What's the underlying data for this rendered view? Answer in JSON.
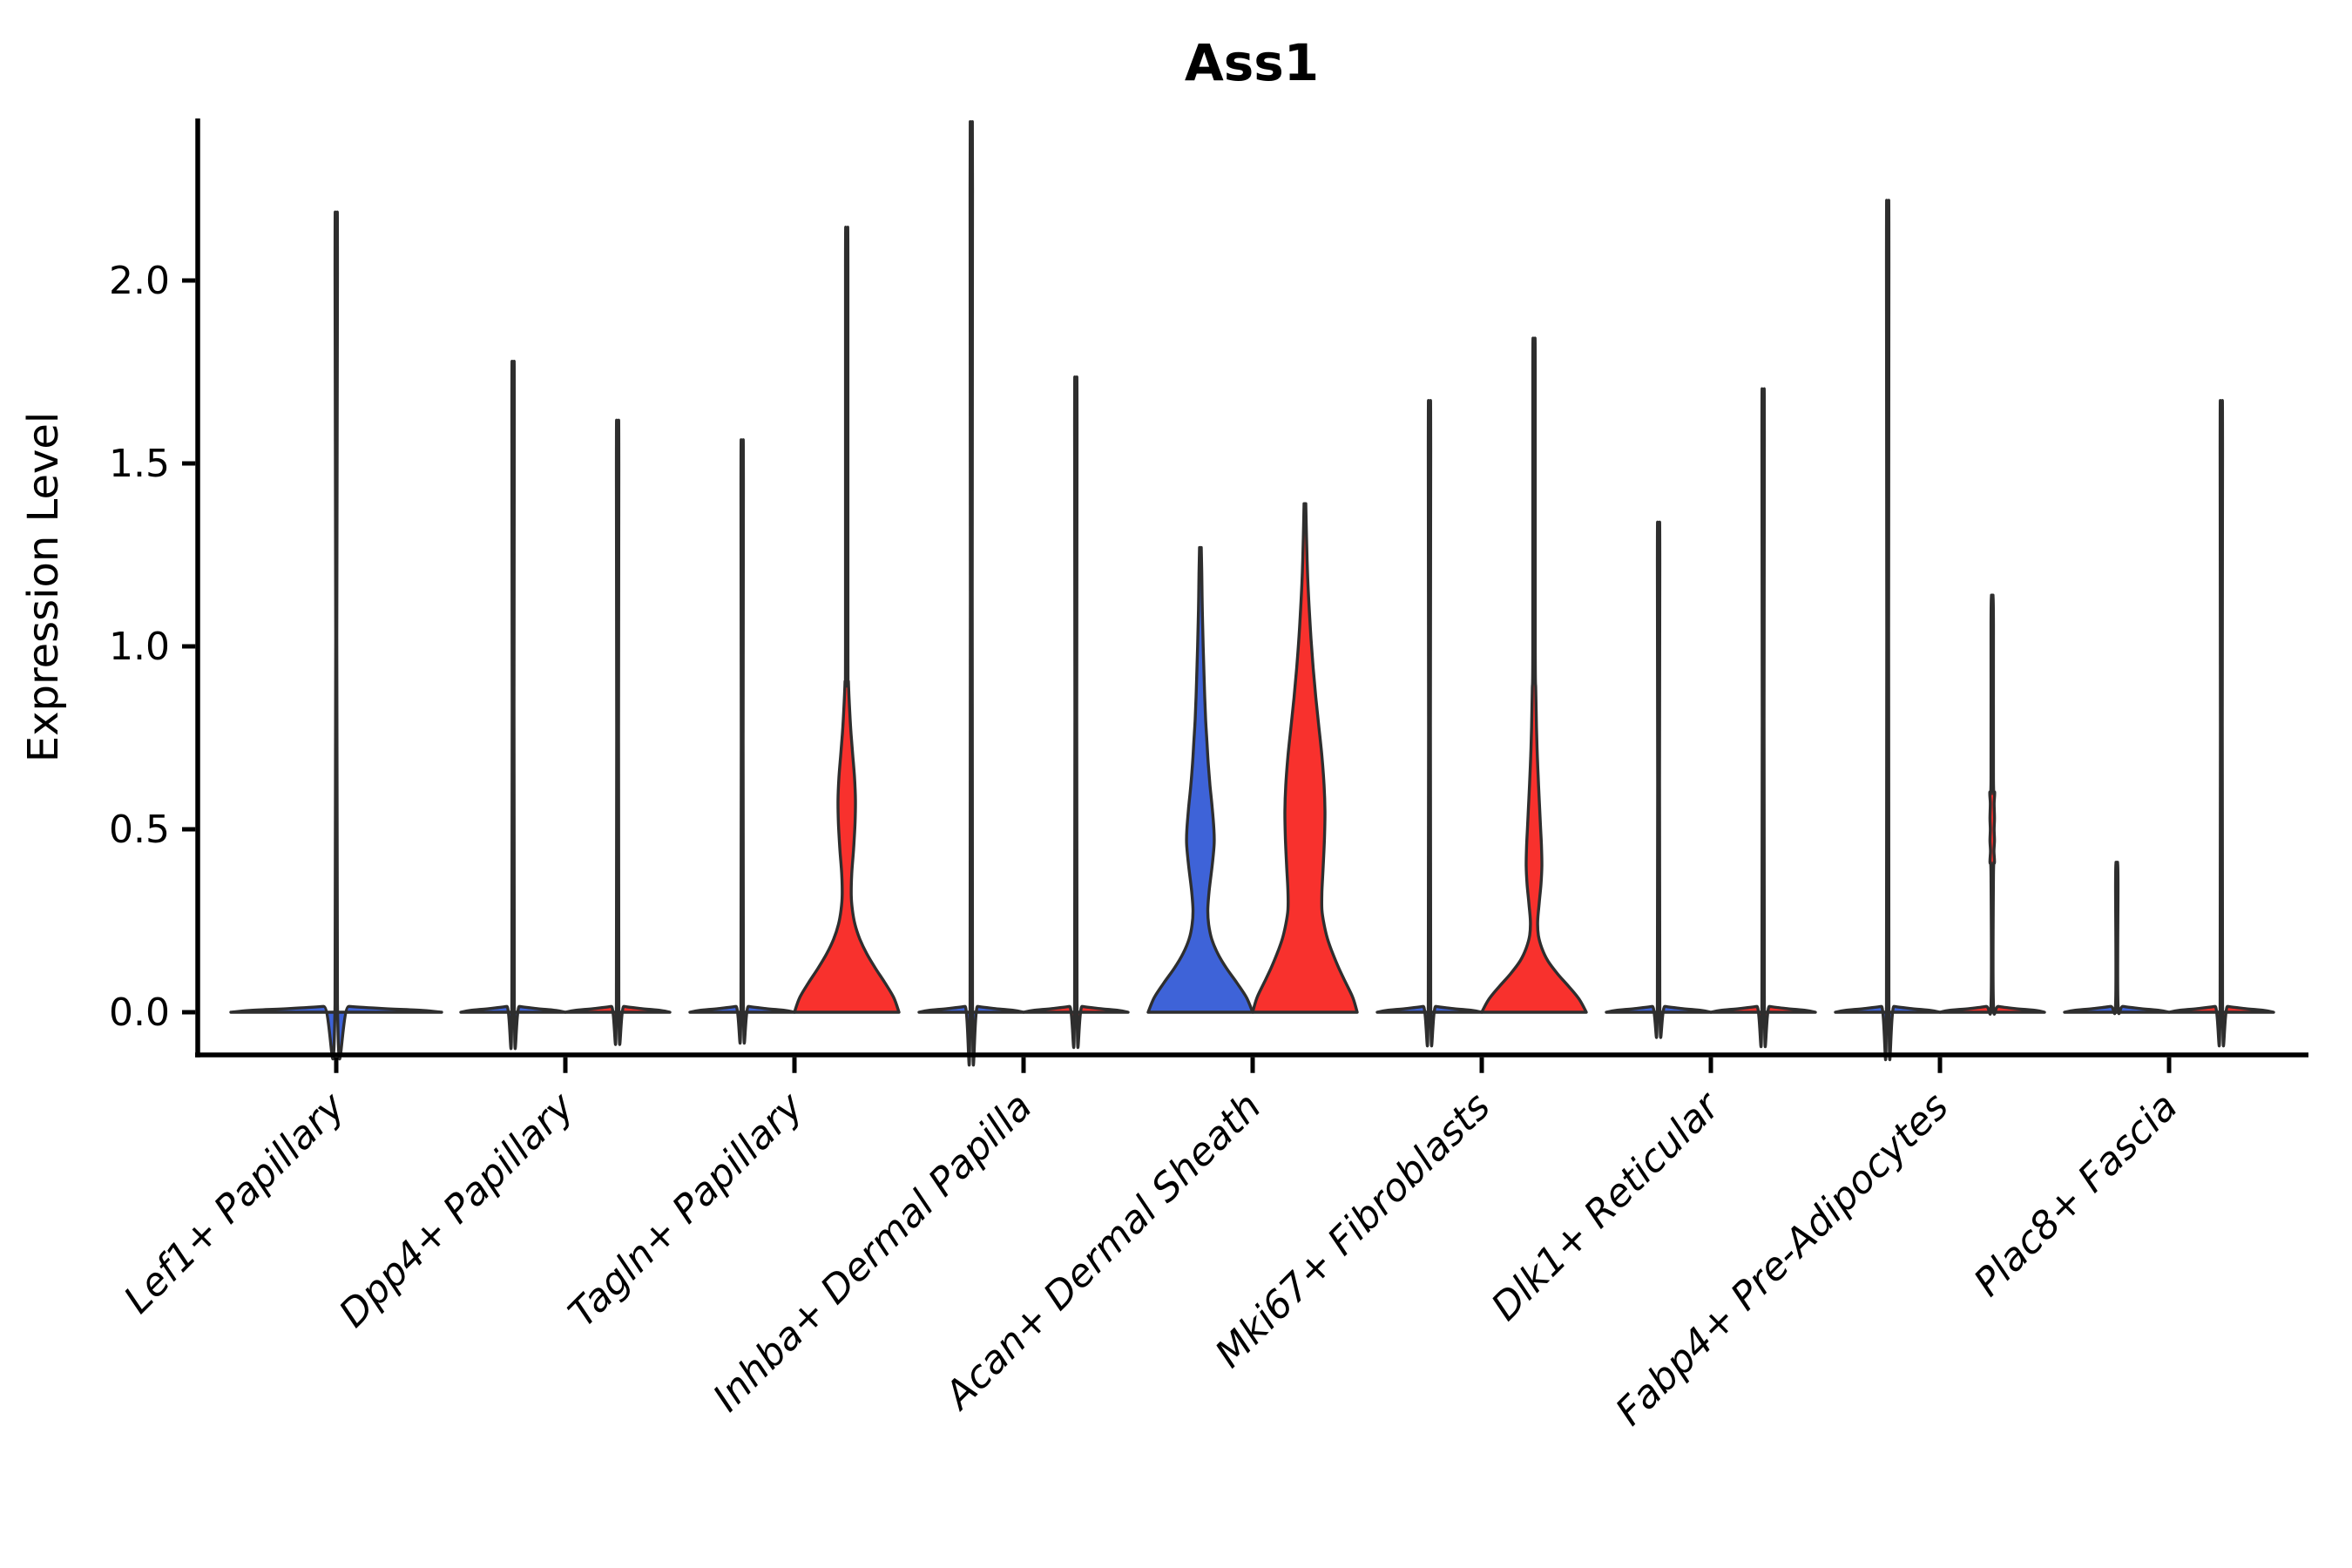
{
  "title": "Ass1",
  "ylabel": "Expression Level",
  "colors": {
    "group_left": "#3e63d8",
    "group_right": "#f8312d",
    "violin_stroke": "#2e2e2e",
    "axis": "#000000",
    "background": "#ffffff"
  },
  "chart_data": {
    "type": "violin",
    "title": "Ass1",
    "ylabel": "Expression Level",
    "xlabel": "",
    "ylim": [
      0,
      2.43
    ],
    "yticks": [
      {
        "value": 0.0,
        "label": "0.0"
      },
      {
        "value": 0.5,
        "label": "0.5"
      },
      {
        "value": 1.0,
        "label": "1.0"
      },
      {
        "value": 1.5,
        "label": "1.5"
      },
      {
        "value": 2.0,
        "label": "2.0"
      }
    ],
    "grid": false,
    "legend": "none",
    "note": "Split violin plot; two groups per category (left=blue, right=red). Most violins collapse to a flat base at 0 with a thin spike to the max expression value.",
    "categories": [
      {
        "label": "Lef1+ Papillary",
        "violins": [
          {
            "side": "center",
            "group": "left",
            "shape": "spike",
            "max": 2.08,
            "slot_halfwidth": 121
          }
        ]
      },
      {
        "label": "Dpp4+ Papillary",
        "violins": [
          {
            "side": "left",
            "group": "left",
            "shape": "spike",
            "max": 1.7,
            "slot_halfwidth": 60
          },
          {
            "side": "right",
            "group": "right",
            "shape": "spike",
            "max": 1.55,
            "slot_halfwidth": 60
          }
        ]
      },
      {
        "label": "Tagln+ Papillary",
        "violins": [
          {
            "side": "left",
            "group": "left",
            "shape": "spike",
            "max": 1.5,
            "slot_halfwidth": 60
          },
          {
            "side": "right",
            "group": "right",
            "shape": "profile",
            "max": 2.12,
            "slot_halfwidth": 60,
            "profile": [
              [
                0,
                60
              ],
              [
                0.04,
                54
              ],
              [
                0.08,
                44
              ],
              [
                0.12,
                33
              ],
              [
                0.16,
                23
              ],
              [
                0.2,
                15
              ],
              [
                0.24,
                9.5
              ],
              [
                0.28,
                6.5
              ],
              [
                0.32,
                5.2
              ],
              [
                0.38,
                5.8
              ],
              [
                0.45,
                8
              ],
              [
                0.52,
                9.6
              ],
              [
                0.58,
                10
              ],
              [
                0.64,
                9
              ],
              [
                0.7,
                7
              ],
              [
                0.76,
                5
              ],
              [
                0.82,
                3.5
              ],
              [
                0.9,
                2
              ],
              [
                1.0,
                1.4
              ],
              [
                2.04,
                1.4
              ],
              [
                2.12,
                0.9
              ]
            ]
          }
        ]
      },
      {
        "label": "Inhba+ Dermal Papilla",
        "violins": [
          {
            "side": "left",
            "group": "left",
            "shape": "spike",
            "max": 2.31,
            "slot_halfwidth": 60
          },
          {
            "side": "right",
            "group": "right",
            "shape": "spike",
            "max": 1.66,
            "slot_halfwidth": 60
          }
        ]
      },
      {
        "label": "Acan+ Dermal Sheath",
        "violins": [
          {
            "side": "left",
            "group": "left",
            "shape": "profile",
            "max": 1.27,
            "slot_halfwidth": 60,
            "profile": [
              [
                0,
                60
              ],
              [
                0.04,
                53
              ],
              [
                0.08,
                42
              ],
              [
                0.12,
                30
              ],
              [
                0.16,
                20
              ],
              [
                0.2,
                13
              ],
              [
                0.24,
                9.5
              ],
              [
                0.28,
                8.5
              ],
              [
                0.33,
                10
              ],
              [
                0.4,
                13.5
              ],
              [
                0.46,
                15.8
              ],
              [
                0.5,
                15.5
              ],
              [
                0.56,
                13.5
              ],
              [
                0.62,
                11
              ],
              [
                0.68,
                9
              ],
              [
                0.74,
                7.5
              ],
              [
                0.8,
                6
              ],
              [
                0.86,
                5
              ],
              [
                0.92,
                4.2
              ],
              [
                1.0,
                3.2
              ],
              [
                1.1,
                2.2
              ],
              [
                1.2,
                1.6
              ],
              [
                1.27,
                1.0
              ]
            ]
          },
          {
            "side": "right",
            "group": "right",
            "shape": "profile",
            "max": 1.39,
            "slot_halfwidth": 60,
            "profile": [
              [
                0,
                60
              ],
              [
                0.04,
                55
              ],
              [
                0.08,
                47
              ],
              [
                0.12,
                39
              ],
              [
                0.16,
                32
              ],
              [
                0.2,
                26
              ],
              [
                0.24,
                22
              ],
              [
                0.28,
                19.5
              ],
              [
                0.33,
                19.5
              ],
              [
                0.4,
                21
              ],
              [
                0.48,
                22.5
              ],
              [
                0.55,
                23
              ],
              [
                0.62,
                22
              ],
              [
                0.7,
                19.5
              ],
              [
                0.78,
                16
              ],
              [
                0.86,
                12.5
              ],
              [
                0.94,
                9.5
              ],
              [
                1.02,
                7
              ],
              [
                1.1,
                5
              ],
              [
                1.2,
                3
              ],
              [
                1.3,
                1.8
              ],
              [
                1.39,
                1.0
              ]
            ]
          }
        ]
      },
      {
        "label": "Mki67+ Fibroblasts",
        "violins": [
          {
            "side": "left",
            "group": "left",
            "shape": "spike",
            "max": 1.6,
            "slot_halfwidth": 60
          },
          {
            "side": "right",
            "group": "right",
            "shape": "profile",
            "max": 1.83,
            "slot_halfwidth": 60,
            "profile": [
              [
                0,
                60
              ],
              [
                0.035,
                52
              ],
              [
                0.07,
                40
              ],
              [
                0.105,
                27
              ],
              [
                0.14,
                16
              ],
              [
                0.175,
                9
              ],
              [
                0.21,
                5
              ],
              [
                0.25,
                4.2
              ],
              [
                0.3,
                6
              ],
              [
                0.35,
                8
              ],
              [
                0.4,
                9
              ],
              [
                0.45,
                8.6
              ],
              [
                0.5,
                7.6
              ],
              [
                0.56,
                6.4
              ],
              [
                0.62,
                5.2
              ],
              [
                0.7,
                3.8
              ],
              [
                0.78,
                2.8
              ],
              [
                0.88,
                2
              ],
              [
                1.0,
                1.4
              ],
              [
                1.76,
                1.4
              ],
              [
                1.83,
                0.9
              ]
            ]
          }
        ]
      },
      {
        "label": "Dlk1+ Reticular",
        "violins": [
          {
            "side": "left",
            "group": "left",
            "shape": "spike",
            "max": 1.29,
            "slot_halfwidth": 60
          },
          {
            "side": "right",
            "group": "right",
            "shape": "spike",
            "max": 1.63,
            "slot_halfwidth": 60
          }
        ]
      },
      {
        "label": "Fabp4+ Pre-Adipocytes",
        "violins": [
          {
            "side": "left",
            "group": "left",
            "shape": "spike",
            "max": 2.11,
            "slot_halfwidth": 60
          },
          {
            "side": "right",
            "group": "right",
            "shape": "profile",
            "max": 1.14,
            "slot_halfwidth": 60,
            "profile": [
              [
                0,
                60
              ],
              [
                0.005,
                50
              ],
              [
                0.01,
                26
              ],
              [
                0.016,
                7
              ],
              [
                0.022,
                1.4
              ],
              [
                0.37,
                1.4
              ],
              [
                0.41,
                2.6
              ],
              [
                0.44,
                2.0
              ],
              [
                0.47,
                2.6
              ],
              [
                0.5,
                2.2
              ],
              [
                0.53,
                2.6
              ],
              [
                0.57,
                2.2
              ],
              [
                0.6,
                2.8
              ],
              [
                0.64,
                1.4
              ],
              [
                1.06,
                1.4
              ],
              [
                1.14,
                0.9
              ]
            ]
          }
        ]
      },
      {
        "label": "Plac8+ Fascia",
        "violins": [
          {
            "side": "left",
            "group": "left",
            "shape": "spike",
            "max": 0.41,
            "slot_halfwidth": 60
          },
          {
            "side": "right",
            "group": "right",
            "shape": "spike",
            "max": 1.6,
            "slot_halfwidth": 60
          }
        ]
      }
    ]
  }
}
